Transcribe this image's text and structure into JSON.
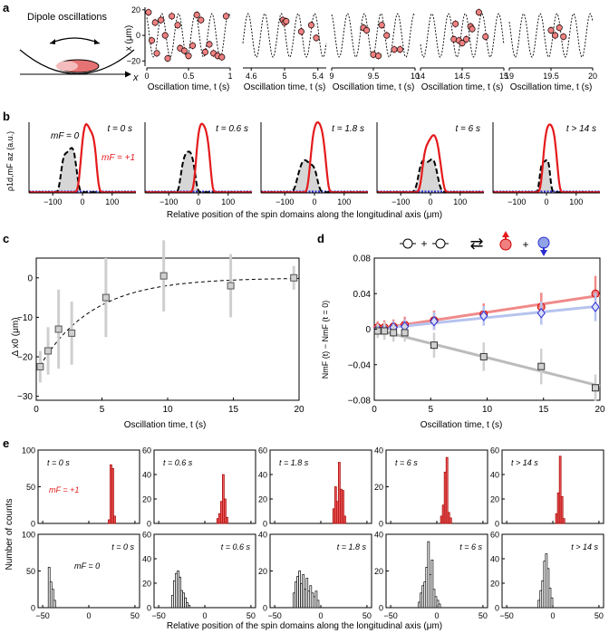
{
  "figure": {
    "panel_labels": [
      "a",
      "b",
      "c",
      "d",
      "e"
    ],
    "schematic": {
      "title": "Dipole oscillations",
      "axis_label": "x"
    },
    "panel_a_ylabel": "x (μm)",
    "panel_a_xlabel": "Oscillation time, t (s)",
    "panel_b_ylabel": "ρ1d,mF az (a.u.)",
    "panel_b_xlabel": "Relative position of the spin domains along the longitudinal axis (μm)",
    "panel_b_label_mf0": "mF = 0",
    "panel_b_label_mf1": "mF = +1",
    "panel_c_ylabel": "Δ x0 (μm)",
    "panel_c_xlabel": "Oscillation time, t (s)",
    "panel_d_ylabel": "NmF (t) − NmF (t = 0)",
    "panel_d_xlabel": "Oscillation time, t (s)",
    "panel_e_ylabel": "Number of counts",
    "panel_e_xlabel": "Relative position of the spin domains along the longitudinal axis (μm)",
    "panel_e_label_mf1": "mF = +1",
    "panel_e_label_mf0": "mF = 0",
    "reaction_arrow": "⇄",
    "plus": "+"
  },
  "colors": {
    "red": "#e41a1c",
    "red_fill": "#f08080",
    "blue": "#2b2bd1",
    "blue_fill": "#b6c3ee",
    "gray": "#8a8a8a",
    "fill_gray": "#d6d6d6"
  },
  "chart_data": [
    {
      "id": "a",
      "type": "scatter",
      "title": "",
      "xlabel": "Oscillation time, t (s)",
      "ylabel": "x (μm)",
      "ylim": [
        -24,
        22
      ],
      "yticks": [
        -20,
        0,
        20
      ],
      "windows": [
        {
          "xlim": [
            0,
            1
          ],
          "xticks": [
            0,
            0.5,
            1
          ],
          "points": [
            [
              0.02,
              18
            ],
            [
              0.06,
              -4
            ],
            [
              0.1,
              10
            ],
            [
              0.12,
              -14
            ],
            [
              0.17,
              12
            ],
            [
              0.22,
              0
            ],
            [
              0.25,
              -18
            ],
            [
              0.3,
              15
            ],
            [
              0.37,
              8
            ],
            [
              0.4,
              -10
            ],
            [
              0.45,
              -12
            ],
            [
              0.5,
              -16
            ],
            [
              0.55,
              -8
            ],
            [
              0.6,
              16
            ],
            [
              0.65,
              12
            ],
            [
              0.7,
              -13
            ],
            [
              0.75,
              -7
            ],
            [
              0.8,
              -14
            ],
            [
              0.85,
              -16
            ],
            [
              0.9,
              -17
            ],
            [
              0.95,
              15
            ]
          ]
        },
        {
          "xlim": [
            4.5,
            5.5
          ],
          "xticks": [
            4.6,
            5,
            5.4
          ],
          "points": [
            [
              4.98,
              12
            ],
            [
              5.0,
              10
            ],
            [
              5.02,
              11
            ],
            [
              5.2,
              3
            ],
            [
              5.32,
              8
            ],
            [
              5.38,
              -2
            ]
          ]
        },
        {
          "xlim": [
            9,
            10
          ],
          "xticks": [
            9,
            9.5,
            10
          ],
          "points": [
            [
              9.38,
              6
            ],
            [
              9.42,
              4
            ],
            [
              9.5,
              -15
            ],
            [
              9.56,
              -16
            ],
            [
              9.6,
              8
            ],
            [
              9.66,
              0
            ],
            [
              9.75,
              -11
            ],
            [
              9.82,
              -11
            ]
          ]
        },
        {
          "xlim": [
            14,
            15
          ],
          "xticks": [
            14,
            14.5,
            15
          ],
          "points": [
            [
              14.4,
              -3
            ],
            [
              14.42,
              9
            ],
            [
              14.46,
              -4
            ],
            [
              14.5,
              -6
            ],
            [
              14.55,
              -3
            ],
            [
              14.6,
              7
            ],
            [
              14.62,
              5
            ],
            [
              14.7,
              18
            ],
            [
              14.78,
              -1
            ]
          ]
        },
        {
          "xlim": [
            19,
            20
          ],
          "xticks": [
            19,
            19.5,
            20
          ],
          "points": [
            [
              19.5,
              4
            ],
            [
              19.55,
              0
            ],
            [
              19.6,
              6
            ],
            [
              19.65,
              -1
            ]
          ]
        }
      ]
    },
    {
      "id": "b",
      "type": "line",
      "xlabel": "Relative position of the spin domains along the longitudinal axis (μm)",
      "ylabel": "ρ1d,mF az (a.u.)",
      "xlim": [
        -180,
        180
      ],
      "xticks": [
        -100,
        0,
        100
      ],
      "times": [
        "t = 0 s",
        "t = 0.6 s",
        "t = 1.8 s",
        "t = 6 s",
        "t > 14 s"
      ],
      "series": [
        {
          "name": "mF = +1",
          "color": "#e41a1c",
          "peaks": [
            [
              20,
              0.96,
              24
            ],
            [
              15,
              0.96,
              22
            ],
            [
              12,
              0.98,
              24
            ],
            [
              5,
              0.8,
              28
            ],
            [
              12,
              0.95,
              22
            ]
          ]
        },
        {
          "name": "mF = 0",
          "color": "#000000",
          "peaks": [
            [
              -45,
              0.63,
              24
            ],
            [
              -35,
              0.57,
              22
            ],
            [
              -25,
              0.45,
              30
            ],
            [
              -8,
              0.48,
              30
            ],
            [
              -5,
              0.48,
              16
            ]
          ]
        }
      ]
    },
    {
      "id": "c",
      "type": "scatter",
      "xlabel": "Oscillation time, t (s)",
      "ylabel": "Δ x0 (μm)",
      "xlim": [
        0,
        20
      ],
      "ylim": [
        -31,
        5
      ],
      "xticks": [
        0,
        5,
        10,
        15,
        20
      ],
      "yticks": [
        -30,
        -20,
        -10,
        0
      ],
      "x": [
        0.3,
        0.9,
        1.7,
        2.7,
        5.3,
        9.7,
        14.8,
        19.6
      ],
      "y": [
        -22.5,
        -18.5,
        -13,
        -14,
        -5,
        0.5,
        -2,
        0
      ],
      "err": [
        4,
        6,
        10,
        8,
        10,
        9,
        8,
        3
      ],
      "fit": {
        "type": "exponential",
        "asymptote": 0,
        "amplitude": -24,
        "tau": 4
      }
    },
    {
      "id": "d",
      "type": "scatter",
      "xlabel": "Oscillation time, t (s)",
      "ylabel": "NmF (t) − NmF (t = 0)",
      "xlim": [
        0,
        20
      ],
      "ylim": [
        -0.08,
        0.08
      ],
      "xticks": [
        0,
        5,
        10,
        15,
        20
      ],
      "yticks": [
        -0.08,
        -0.04,
        0,
        0.04,
        0.08
      ],
      "x": [
        0.3,
        0.9,
        1.7,
        2.7,
        5.3,
        9.7,
        14.8,
        19.6
      ],
      "series": [
        {
          "name": "mF = +1",
          "color": "#e41a1c",
          "values": [
            0.002,
            0.002,
            0.003,
            0.005,
            0.01,
            0.017,
            0.025,
            0.04
          ],
          "err": [
            0.007,
            0.008,
            0.008,
            0.009,
            0.011,
            0.012,
            0.016,
            0.02
          ],
          "fit": [
            0,
            0.0019
          ]
        },
        {
          "name": "mF = -1",
          "color": "#2b2bd1",
          "values": [
            0.0,
            0.0,
            0.002,
            0.003,
            0.009,
            0.015,
            0.018,
            0.025
          ],
          "err": [
            0.006,
            0.007,
            0.007,
            0.008,
            0.01,
            0.011,
            0.013,
            0.016
          ],
          "fit": [
            0,
            0.0013
          ]
        },
        {
          "name": "mF = 0",
          "color": "#555555",
          "values": [
            -0.002,
            -0.002,
            -0.004,
            -0.004,
            -0.018,
            -0.031,
            -0.042,
            -0.066
          ],
          "err": [
            0.008,
            0.01,
            0.01,
            0.01,
            0.014,
            0.016,
            0.02,
            0.015
          ],
          "fit": [
            0,
            -0.0032
          ]
        }
      ]
    },
    {
      "id": "e",
      "type": "bar",
      "xlabel": "Relative position of the spin domains along the longitudinal axis (μm)",
      "ylabel": "Number of counts",
      "xlim": [
        -55,
        55
      ],
      "xticks": [
        -50,
        0,
        50
      ],
      "times": [
        "t = 0 s",
        "t = 0.6 s",
        "t = 1.8 s",
        "t = 6 s",
        "t > 14 s"
      ],
      "rows": [
        {
          "name": "mF = +1",
          "color": "#f04848",
          "ymax": [
            100,
            60,
            60,
            40,
            60
          ],
          "yticks": [
            [
              0,
              50,
              100
            ],
            [
              0,
              20,
              40,
              60
            ],
            [
              0,
              20,
              40,
              60
            ],
            [
              0,
              20,
              40
            ],
            [
              0,
              20,
              40,
              60
            ]
          ],
          "panels": [
            {
              "start": 21,
              "width": 2,
              "counts": [
                5,
                80,
                75,
                10
              ]
            },
            {
              "start": 13,
              "width": 2,
              "counts": [
                4,
                8,
                18,
                40,
                20,
                5
              ]
            },
            {
              "start": 13,
              "width": 2,
              "counts": [
                12,
                30,
                18,
                50,
                28,
                27,
                6
              ]
            },
            {
              "start": 4,
              "width": 2,
              "counts": [
                4,
                10,
                28,
                36,
                6,
                3
              ]
            },
            {
              "start": 3,
              "width": 2,
              "counts": [
                8,
                25,
                55,
                22,
                4
              ]
            }
          ]
        },
        {
          "name": "mF = 0",
          "color": "#000000",
          "ymax": [
            100,
            60,
            40,
            40,
            60
          ],
          "yticks": [
            [
              0,
              50,
              100
            ],
            [
              0,
              20,
              40,
              60
            ],
            [
              0,
              20,
              40
            ],
            [
              0,
              20,
              40
            ],
            [
              0,
              20,
              40,
              60
            ]
          ],
          "panels": [
            {
              "start": -44,
              "width": 2,
              "counts": [
                55,
                35,
                25,
                10
              ]
            },
            {
              "start": -36,
              "width": 2,
              "counts": [
                10,
                22,
                28,
                30,
                25,
                14,
                12,
                8,
                4,
                2
              ]
            },
            {
              "start": -30,
              "width": 2,
              "counts": [
                8,
                14,
                17,
                20,
                13,
                18,
                10,
                16,
                9,
                12,
                8,
                6,
                9,
                4
              ]
            },
            {
              "start": -20,
              "width": 2,
              "counts": [
                3,
                8,
                12,
                14,
                22,
                36,
                18,
                26,
                10,
                6,
                4,
                2
              ]
            },
            {
              "start": -16,
              "width": 2,
              "counts": [
                6,
                14,
                22,
                38,
                44,
                32,
                16,
                8
              ]
            }
          ]
        }
      ]
    }
  ]
}
